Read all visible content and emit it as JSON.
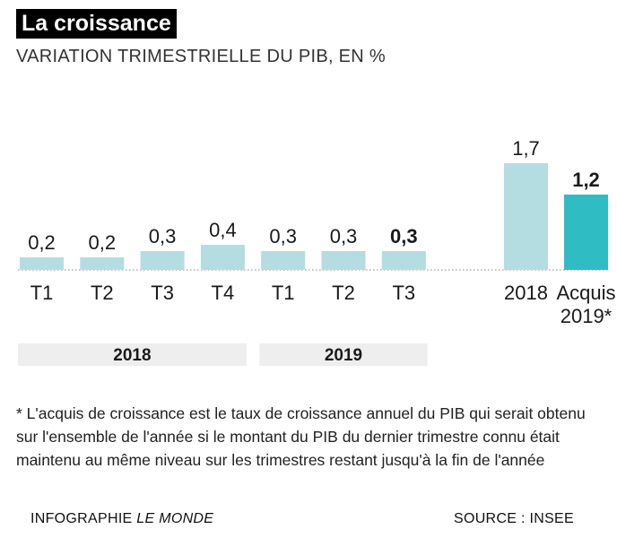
{
  "title": "La croissance",
  "subtitle": "VARIATION TRIMESTRIELLE DU PIB, EN %",
  "chart_data": {
    "type": "bar",
    "title": "La croissance",
    "ylabel": "VARIATION TRIMESTRIELLE DU PIB, EN %",
    "ylim": [
      0,
      1.7
    ],
    "groups": [
      {
        "label": "2018",
        "categories": [
          "T1",
          "T2",
          "T3",
          "T4"
        ]
      },
      {
        "label": "2019",
        "categories": [
          "T1",
          "T2",
          "T3"
        ]
      }
    ],
    "quarterly": [
      {
        "category": "T1",
        "year": "2018",
        "value": 0.2,
        "value_label": "0,2"
      },
      {
        "category": "T2",
        "year": "2018",
        "value": 0.2,
        "value_label": "0,2"
      },
      {
        "category": "T3",
        "year": "2018",
        "value": 0.3,
        "value_label": "0,3"
      },
      {
        "category": "T4",
        "year": "2018",
        "value": 0.4,
        "value_label": "0,4"
      },
      {
        "category": "T1",
        "year": "2019",
        "value": 0.3,
        "value_label": "0,3"
      },
      {
        "category": "T2",
        "year": "2019",
        "value": 0.3,
        "value_label": "0,3"
      },
      {
        "category": "T3",
        "year": "2019",
        "value": 0.3,
        "value_label": "0,3",
        "emphasis": true
      }
    ],
    "annual": [
      {
        "category": "2018",
        "value": 1.7,
        "value_label": "1,7"
      },
      {
        "category": "Acquis 2019*",
        "category_lines": [
          "Acquis",
          "2019*"
        ],
        "value": 1.2,
        "value_label": "1,2",
        "emphasis": true
      }
    ],
    "colors": {
      "bar": "#b4dde1",
      "highlight": "#2fbcc2",
      "group_band": "#eeeeee",
      "baseline": "#888888"
    }
  },
  "footnote": "* L'acquis de croissance est le taux de croissance annuel du PIB qui serait obtenu sur l'ensemble de l'année si le montant du PIB du dernier trimestre connu était maintenu au même niveau sur les trimestres restant jusqu'à la fin de l'année",
  "credit": {
    "prefix": "INFOGRAPHIE ",
    "publication": "LE MONDE"
  },
  "source": "SOURCE : INSEE"
}
